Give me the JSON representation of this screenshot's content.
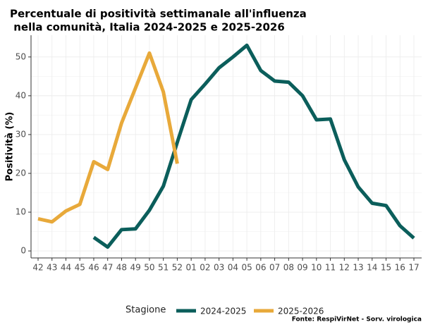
{
  "chart_data": {
    "type": "line",
    "title": [
      "Percentuale di positività settimanale all'influenza",
      " nella comunità, Italia 2024-2025 e 2025-2026"
    ],
    "y_label": "Positività (%)",
    "legend_title": "Stagione",
    "source": "Fonte: RespiVirNet - Sorv. virologica",
    "legend": "bottom",
    "grid": true,
    "categories": [
      "42",
      "43",
      "44",
      "45",
      "46",
      "47",
      "48",
      "49",
      "50",
      "51",
      "52",
      "01",
      "02",
      "03",
      "04",
      "05",
      "06",
      "07",
      "08",
      "09",
      "10",
      "11",
      "12",
      "13",
      "14",
      "15",
      "16",
      "17"
    ],
    "series": [
      {
        "name": "2024-2025",
        "color": "#0b5e5b",
        "values": [
          null,
          null,
          null,
          null,
          3.5,
          1,
          5.5,
          5.7,
          10.5,
          16.7,
          28,
          39,
          43,
          47.2,
          50,
          53,
          46.5,
          43.8,
          43.5,
          40,
          33.8,
          34,
          23.5,
          16.5,
          12.3,
          11.7,
          6.5,
          3.3
        ]
      },
      {
        "name": "2025-2026",
        "color": "#e8a93a",
        "values": [
          8.3,
          7.5,
          10.3,
          12,
          23,
          21,
          33,
          42,
          51,
          41,
          22.5,
          null,
          null,
          null,
          null,
          null,
          null,
          null,
          null,
          null,
          null,
          null,
          null,
          null,
          null,
          null,
          null,
          null
        ]
      }
    ],
    "ylim": [
      -1.8,
      55.6
    ],
    "yticks": [
      0,
      10,
      20,
      30,
      40,
      50
    ]
  }
}
